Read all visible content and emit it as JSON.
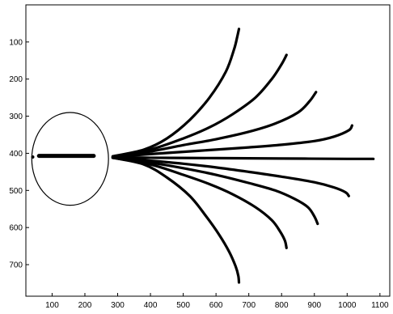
{
  "chart_data": {
    "type": "line",
    "title": "",
    "xlabel": "",
    "ylabel": "",
    "xlim": [
      20,
      1130
    ],
    "ylim": [
      0,
      785
    ],
    "y_inverted": true,
    "grid": false,
    "legend": "none",
    "x_ticks": [
      100,
      200,
      300,
      400,
      500,
      600,
      700,
      800,
      900,
      1000,
      1100
    ],
    "y_ticks": [
      100,
      200,
      300,
      400,
      500,
      600,
      700
    ],
    "colors": {
      "line": "#000000",
      "axes": "#000000",
      "background": "#ffffff"
    },
    "ellipse": {
      "cx": 155,
      "cy": 415,
      "rx": 117,
      "ry": 125
    },
    "bar_segment": {
      "x": [
        60,
        227
      ],
      "y": 407
    },
    "series": [
      {
        "x": [
          285,
          380,
          450,
          520,
          580,
          630,
          655,
          665,
          670
        ],
        "y": [
          408,
          390,
          360,
          310,
          250,
          180,
          120,
          85,
          65
        ]
      },
      {
        "x": [
          285,
          400,
          500,
          580,
          650,
          720,
          770,
          800,
          815
        ],
        "y": [
          410,
          390,
          360,
          330,
          295,
          250,
          200,
          160,
          135
        ]
      },
      {
        "x": [
          285,
          400,
          500,
          600,
          700,
          780,
          850,
          885,
          905
        ],
        "y": [
          410,
          395,
          378,
          362,
          342,
          320,
          290,
          260,
          235
        ]
      },
      {
        "x": [
          285,
          400,
          500,
          600,
          700,
          800,
          900,
          960,
          1005,
          1015
        ],
        "y": [
          410,
          402,
          396,
          390,
          384,
          377,
          367,
          355,
          338,
          325
        ]
      },
      {
        "x": [
          285,
          400,
          600,
          800,
          1000,
          1080
        ],
        "y": [
          410,
          412,
          413,
          414,
          415,
          415
        ]
      },
      {
        "x": [
          285,
          400,
          500,
          600,
          700,
          800,
          900,
          960,
          995,
          1005
        ],
        "y": [
          412,
          420,
          428,
          438,
          450,
          463,
          478,
          492,
          505,
          515
        ]
      },
      {
        "x": [
          285,
          400,
          500,
          600,
          700,
          780,
          840,
          880,
          900,
          910
        ],
        "y": [
          412,
          425,
          440,
          458,
          480,
          500,
          523,
          545,
          570,
          590
        ]
      },
      {
        "x": [
          285,
          400,
          500,
          580,
          650,
          720,
          770,
          795,
          810,
          815
        ],
        "y": [
          412,
          430,
          458,
          483,
          510,
          545,
          580,
          610,
          635,
          655
        ]
      },
      {
        "x": [
          285,
          380,
          450,
          520,
          570,
          610,
          640,
          660,
          668,
          670
        ],
        "y": [
          412,
          430,
          465,
          515,
          570,
          620,
          665,
          705,
          730,
          748
        ]
      }
    ]
  }
}
